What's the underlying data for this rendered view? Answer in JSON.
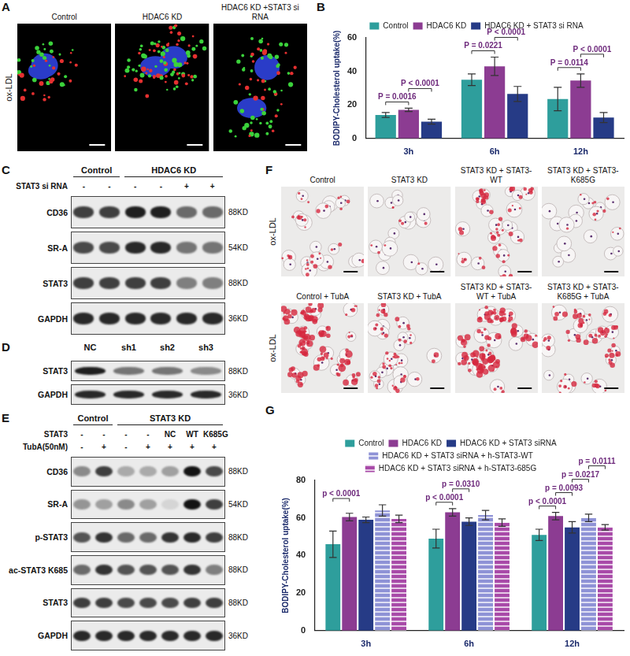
{
  "chart_data": [
    {
      "letter": "B",
      "type": "bar",
      "y_label": "BODIPY-Cholesterol uptake(%)",
      "categories": [
        "3h",
        "6h",
        "12h"
      ],
      "series": [
        {
          "name": "Control",
          "color": "#2e9e9c",
          "values": [
            14,
            35,
            23.5
          ],
          "errors": [
            1.5,
            3.5,
            7
          ]
        },
        {
          "name": "HDAC6 KD",
          "color": "#8c3c92",
          "values": [
            17,
            43,
            34.5
          ],
          "errors": [
            1,
            5.5,
            4
          ]
        },
        {
          "name": "HDAC6 KD + STAT3 si RNA",
          "color": "#263b86",
          "values": [
            10,
            26.5,
            12.5
          ],
          "errors": [
            1.5,
            4.5,
            3
          ]
        }
      ],
      "ylim": [
        0,
        60
      ],
      "yticks": [
        0,
        20,
        40,
        60
      ],
      "grid": false,
      "legend": "top",
      "annotations": [
        {
          "category": "3h",
          "from": "Control",
          "to": "HDAC6 KD",
          "text": "P = 0.0016"
        },
        {
          "category": "3h",
          "from": "HDAC6 KD",
          "to": "HDAC6 KD + STAT3 si RNA",
          "text": "P < 0.0001"
        },
        {
          "category": "6h",
          "from": "Control",
          "to": "HDAC6 KD",
          "text": "P = 0.0221"
        },
        {
          "category": "6h",
          "from": "HDAC6 KD",
          "to": "HDAC6 KD + STAT3 si RNA",
          "text": "P < 0.0001"
        },
        {
          "category": "12h",
          "from": "Control",
          "to": "HDAC6 KD",
          "text": "P = 0.0114"
        },
        {
          "category": "12h",
          "from": "HDAC6 KD",
          "to": "HDAC6 KD + STAT3 si RNA",
          "text": "P < 0.0001"
        }
      ]
    },
    {
      "letter": "G",
      "type": "bar",
      "y_label": "BODIPY-Cholesterol uptake(%)",
      "categories": [
        "3h",
        "6h",
        "12h"
      ],
      "series": [
        {
          "name": "Control",
          "color": "#2e9e9c",
          "values": [
            46,
            49,
            51
          ],
          "errors": [
            7,
            5,
            3
          ]
        },
        {
          "name": "HDAC6 KD",
          "color": "#8c3c92",
          "values": [
            60.5,
            63,
            61
          ],
          "errors": [
            2,
            2,
            2
          ]
        },
        {
          "name": "HDAC6 KD + STAT3 siRNA",
          "color": "#263b86",
          "values": [
            59,
            58,
            55
          ],
          "errors": [
            1.5,
            2,
            3
          ]
        },
        {
          "name": "HDAC6 KD + STAT3 siRNA + h-STAT3-WT",
          "color": "#8e92d6",
          "values": [
            64,
            61.5,
            60
          ],
          "errors": [
            3,
            2.5,
            2
          ]
        },
        {
          "name": "HDAC6 KD + STAT3 siRNA + h-STAT3-685G",
          "color": "#a84aa8",
          "values": [
            59.5,
            57.5,
            55
          ],
          "errors": [
            2,
            2,
            1.5
          ]
        }
      ],
      "ylim": [
        0,
        80
      ],
      "yticks": [
        0,
        20,
        40,
        60,
        80
      ],
      "grid": false,
      "legend": "top",
      "annotations": [
        {
          "category": "3h",
          "from": "Control",
          "to": "HDAC6 KD",
          "text": "p < 0.0001"
        },
        {
          "category": "6h",
          "from": "Control",
          "to": "HDAC6 KD",
          "text": "p < 0.0001"
        },
        {
          "category": "6h",
          "from": "HDAC6 KD",
          "to": "HDAC6 KD + STAT3 siRNA",
          "text": "p = 0.0310"
        },
        {
          "category": "12h",
          "from": "Control",
          "to": "HDAC6 KD",
          "text": "p < 0.0001"
        },
        {
          "category": "12h",
          "from": "HDAC6 KD",
          "to": "HDAC6 KD + STAT3 siRNA",
          "text": "p = 0.0093"
        },
        {
          "category": "12h",
          "from": "HDAC6 KD + STAT3 siRNA",
          "to": "HDAC6 KD + STAT3 siRNA + h-STAT3-WT",
          "text": "p = 0.0217"
        },
        {
          "category": "12h",
          "from": "HDAC6 KD + STAT3 siRNA + h-STAT3-WT",
          "to": "HDAC6 KD + STAT3 siRNA + h-STAT3-685G",
          "text": "p = 0.0111"
        }
      ]
    }
  ],
  "images": [
    {
      "letter": "A",
      "row_label": "ox-LDL",
      "rows": [
        {
          "titles": [
            "Control",
            "HDAC6 KD",
            "HDAC6 KD +STAT3 si RNA"
          ],
          "staining": [
            0.35,
            0.9,
            0.7
          ]
        }
      ]
    },
    {
      "letter": "F",
      "row_label": "ox-LDL",
      "rows": [
        {
          "titles": [
            "Control",
            "STAT3 KD",
            "STAT3 KD + STAT3-WT",
            "STAT3 KD + STAT3-K685G"
          ],
          "staining": [
            0.3,
            0.08,
            0.5,
            0.1
          ]
        },
        {
          "titles": [
            "Control + TubA",
            "STAT3 KD + TubA",
            "STAT3 KD + STAT3-WT + TubA",
            "STAT3 KD + STAT3-K685G + TubA"
          ],
          "staining": [
            0.95,
            0.45,
            0.85,
            0.6
          ]
        }
      ]
    }
  ],
  "blots": [
    {
      "letter": "C",
      "groups": [
        {
          "label": "Control",
          "lanes": [
            0,
            1
          ]
        },
        {
          "label": "HDAC6 KD",
          "lanes": [
            2,
            5
          ]
        }
      ],
      "conditions": [
        {
          "label": "STAT3 si RNA",
          "marks": [
            "-",
            "-",
            "-",
            "-",
            "+",
            "+"
          ]
        }
      ],
      "rows": [
        {
          "label": "CD36",
          "size": "88KD",
          "intensity": [
            0.8,
            0.8,
            0.95,
            0.95,
            0.6,
            0.6
          ]
        },
        {
          "label": "SR-A",
          "size": "54KD",
          "intensity": [
            0.75,
            0.75,
            0.9,
            0.9,
            0.55,
            0.55
          ]
        },
        {
          "label": "STAT3",
          "size": "88KD",
          "intensity": [
            0.8,
            0.8,
            0.8,
            0.8,
            0.5,
            0.5
          ]
        },
        {
          "label": "GAPDH",
          "size": "36KD",
          "intensity": [
            0.9,
            0.9,
            0.9,
            0.9,
            0.9,
            0.9
          ]
        }
      ]
    },
    {
      "letter": "D",
      "groups": [
        {
          "label": "NC",
          "lanes": [
            0,
            0
          ]
        },
        {
          "label": "sh1",
          "lanes": [
            1,
            1
          ]
        },
        {
          "label": "sh2",
          "lanes": [
            2,
            2
          ]
        },
        {
          "label": "sh3",
          "lanes": [
            3,
            3
          ]
        }
      ],
      "conditions": [],
      "rows": [
        {
          "label": "STAT3",
          "size": "88KD",
          "intensity": [
            0.95,
            0.55,
            0.55,
            0.45
          ]
        },
        {
          "label": "GAPDH",
          "size": "36KD",
          "intensity": [
            0.9,
            0.9,
            0.9,
            0.9
          ]
        }
      ]
    },
    {
      "letter": "E",
      "groups": [
        {
          "label": "Control",
          "lanes": [
            0,
            1
          ]
        },
        {
          "label": "STAT3 KD",
          "lanes": [
            2,
            6
          ]
        }
      ],
      "conditions": [
        {
          "label": "STAT3",
          "marks": [
            "-",
            "-",
            "-",
            "-",
            "NC",
            "WT",
            "K685G"
          ]
        },
        {
          "label": "TubA(50nM)",
          "marks": [
            "-",
            "+",
            "-",
            "+",
            "+",
            "+",
            "+"
          ]
        }
      ],
      "rows": [
        {
          "label": "CD36",
          "size": "88KD",
          "intensity": [
            0.45,
            0.8,
            0.3,
            0.3,
            0.35,
            1.0,
            0.75
          ]
        },
        {
          "label": "SR-A",
          "size": "54KD",
          "intensity": [
            0.4,
            0.35,
            0.45,
            0.35,
            0.1,
            1.0,
            0.8
          ]
        },
        {
          "label": "p-STAT3",
          "size": "88KD",
          "intensity": [
            0.7,
            0.85,
            0.6,
            0.6,
            0.85,
            0.9,
            0.8
          ]
        },
        {
          "label": "ac-STAT3 K685",
          "size": "88KD",
          "intensity": [
            0.6,
            0.85,
            0.7,
            0.7,
            0.7,
            0.85,
            0.5
          ]
        },
        {
          "label": "STAT3",
          "size": "88KD",
          "intensity": [
            0.8,
            0.8,
            0.75,
            0.75,
            0.75,
            0.8,
            0.8
          ]
        },
        {
          "label": "GAPDH",
          "size": "36KD",
          "intensity": [
            0.9,
            0.9,
            0.9,
            0.9,
            0.9,
            0.9,
            0.9
          ]
        }
      ]
    }
  ]
}
